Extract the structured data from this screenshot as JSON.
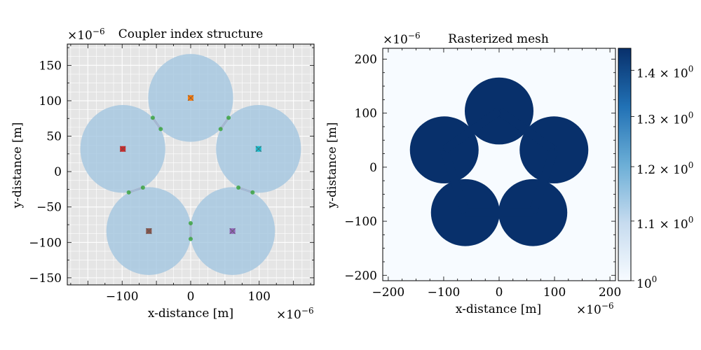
{
  "chart_data": [
    {
      "type": "scatter",
      "title": "Coupler index structure",
      "xlabel": "x-distance [m]",
      "ylabel": "y-distance [m]",
      "scale_label": "×10",
      "scale_exp": "−6",
      "xlim": [
        -180,
        180
      ],
      "ylim": [
        -160,
        180
      ],
      "grid": true,
      "xticks": [
        -100,
        0,
        100
      ],
      "yticks": [
        -150,
        -100,
        -50,
        0,
        50,
        100,
        150
      ],
      "xtick_labels": [
        "−100",
        "0",
        "100"
      ],
      "ytick_labels": [
        "−150",
        "−100",
        "−50",
        "0",
        "50",
        "100",
        "150"
      ],
      "cores": [
        {
          "x": 0,
          "y": 104,
          "radius": 62,
          "color": "#ff7f0e"
        },
        {
          "x": 99,
          "y": 32,
          "radius": 62,
          "color": "#17becf"
        },
        {
          "x": 61,
          "y": -84,
          "radius": 62,
          "color": "#9467bd"
        },
        {
          "x": -61,
          "y": -84,
          "radius": 62,
          "color": "#8c564b"
        },
        {
          "x": -99,
          "y": 32,
          "radius": 62,
          "color": "#d62728"
        }
      ],
      "circle_color": "#9ec3df",
      "bridge_color": "#c96e7a",
      "contact_color": "#2ca02c"
    },
    {
      "type": "heatmap",
      "title": "Rasterized mesh",
      "xlabel": "x-distance [m]",
      "ylabel": "y-distance [m]",
      "scale_label": "×10",
      "scale_exp": "−6",
      "xlim": [
        -210,
        210
      ],
      "ylim": [
        -210,
        220
      ],
      "xticks": [
        -200,
        -100,
        0,
        100,
        200
      ],
      "yticks": [
        -200,
        -100,
        0,
        100,
        200
      ],
      "xtick_labels": [
        "−200",
        "−100",
        "0",
        "100",
        "200"
      ],
      "ytick_labels": [
        "−200",
        "−100",
        "0",
        "100",
        "200"
      ],
      "values_range": [
        1.0,
        1.45
      ],
      "background_value": 1.0,
      "core_value": 1.45,
      "cmap": "Blues",
      "colorbar": {
        "log_scale": true,
        "ticks": [
          1.0,
          1.1,
          1.2,
          1.3,
          1.4
        ],
        "labels": [
          {
            "base": "10",
            "exp": "0"
          },
          {
            "base": "1.1 × 10",
            "exp": "0"
          },
          {
            "base": "1.2 × 10",
            "exp": "0"
          },
          {
            "base": "1.3 × 10",
            "exp": "0"
          },
          {
            "base": "1.4 × 10",
            "exp": "0"
          }
        ]
      }
    }
  ]
}
